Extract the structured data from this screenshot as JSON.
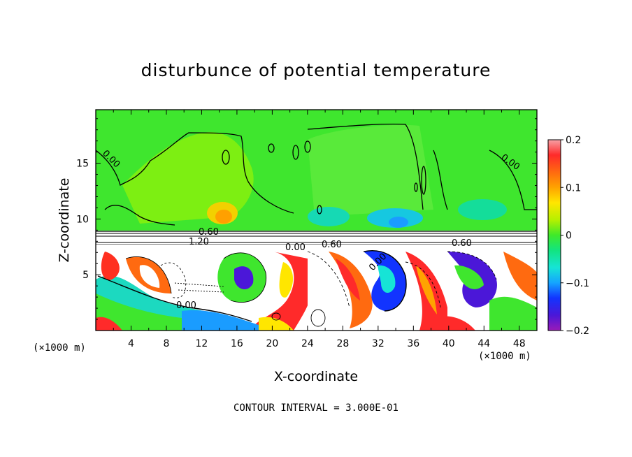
{
  "title": "disturbunce of potential temperature",
  "footnote": "CONTOUR INTERVAL = 3.000E-01",
  "x_unit_left": "(×1000 m)",
  "x_unit_right": "(×1000 m)",
  "chart_data": {
    "type": "heatmap",
    "title": "disturbunce of potential temperature",
    "xlabel": "X-coordinate",
    "ylabel": "Z-coordinate",
    "xlim": [
      0,
      50
    ],
    "ylim": [
      0,
      19.8
    ],
    "x_ticks": [
      4,
      8,
      12,
      16,
      20,
      24,
      28,
      32,
      36,
      40,
      44,
      48
    ],
    "y_ticks": [
      5,
      10,
      15
    ],
    "colorbar": {
      "ticks": [
        0.2,
        0.1,
        0,
        -0.1,
        -0.2
      ],
      "range": [
        -0.2,
        0.2
      ],
      "colors": [
        "#f7a1a6",
        "#ff2a2a",
        "#ff6a10",
        "#ffa300",
        "#ffe600",
        "#b6f000",
        "#3fe92a",
        "#12e480",
        "#16e4d6",
        "#15a4ff",
        "#1234ff",
        "#4b17d8",
        "#9a1bb8"
      ]
    },
    "contour_interval": "3.000E-01",
    "contour_labels": [
      "0.00",
      "0.00",
      "0.60",
      "1.20",
      "0.00",
      "0.60",
      "0.00",
      "0.60",
      "0.00"
    ],
    "colors": {
      "upper_background": "#3fe62e",
      "upper_light": "#7ef000",
      "warm_anomaly": "#ffb000",
      "cold_anomaly": "#14c8d8",
      "inversion_band": "#ffffff",
      "lower_white": "#ffffff"
    }
  }
}
